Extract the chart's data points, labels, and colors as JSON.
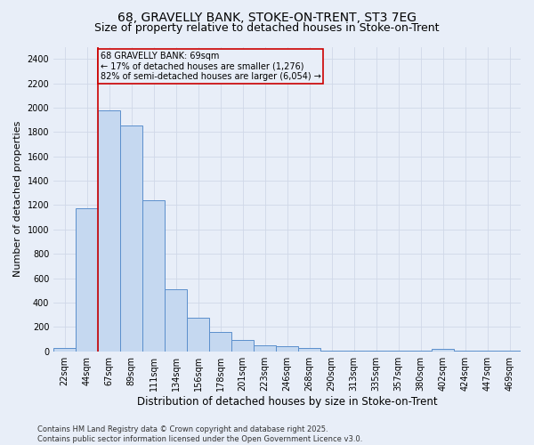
{
  "title1": "68, GRAVELLY BANK, STOKE-ON-TRENT, ST3 7EG",
  "title2": "Size of property relative to detached houses in Stoke-on-Trent",
  "xlabel": "Distribution of detached houses by size in Stoke-on-Trent",
  "ylabel": "Number of detached properties",
  "categories": [
    "22sqm",
    "44sqm",
    "67sqm",
    "89sqm",
    "111sqm",
    "134sqm",
    "156sqm",
    "178sqm",
    "201sqm",
    "223sqm",
    "246sqm",
    "268sqm",
    "290sqm",
    "313sqm",
    "335sqm",
    "357sqm",
    "380sqm",
    "402sqm",
    "424sqm",
    "447sqm",
    "469sqm"
  ],
  "values": [
    30,
    1175,
    1975,
    1855,
    1240,
    510,
    275,
    155,
    90,
    50,
    40,
    25,
    5,
    5,
    5,
    5,
    5,
    20,
    5,
    5,
    5
  ],
  "bar_color": "#c5d8f0",
  "bar_edge_color": "#5b8fcc",
  "background_color": "#e8eef8",
  "vline_color": "#cc0000",
  "annotation_title": "68 GRAVELLY BANK: 69sqm",
  "annotation_line1": "← 17% of detached houses are smaller (1,276)",
  "annotation_line2": "82% of semi-detached houses are larger (6,054) →",
  "annotation_box_color": "#cc0000",
  "ylim": [
    0,
    2500
  ],
  "yticks": [
    0,
    200,
    400,
    600,
    800,
    1000,
    1200,
    1400,
    1600,
    1800,
    2000,
    2200,
    2400
  ],
  "footer1": "Contains HM Land Registry data © Crown copyright and database right 2025.",
  "footer2": "Contains public sector information licensed under the Open Government Licence v3.0.",
  "grid_color": "#d0d8e8",
  "title_fontsize": 10,
  "subtitle_fontsize": 9,
  "ylabel_fontsize": 8,
  "xlabel_fontsize": 8.5,
  "tick_fontsize": 7,
  "footer_fontsize": 6,
  "annot_fontsize": 7
}
